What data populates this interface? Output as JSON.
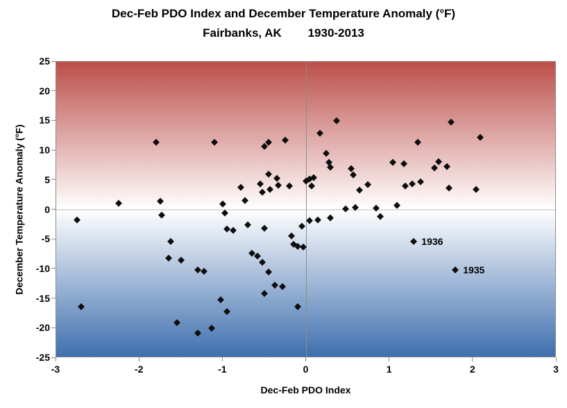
{
  "title": {
    "line1": "Dec-Feb PDO Index and December Temperature Anomaly (°F)",
    "line2": "Fairbanks, AK        1930-2013"
  },
  "axes": {
    "x": {
      "label": "Dec-Feb PDO Index",
      "min": -3,
      "max": 3,
      "ticks": [
        -3,
        -2,
        -1,
        0,
        1,
        2,
        3
      ]
    },
    "y": {
      "label": "December Temperature Anomaly (°F)",
      "min": -25,
      "max": 25,
      "ticks": [
        25,
        20,
        15,
        10,
        5,
        0,
        -5,
        -10,
        -15,
        -20,
        -25
      ]
    }
  },
  "colors": {
    "gradient_top": "#bc4f4a",
    "gradient_middle": "#ffffff",
    "gradient_bottom": "#3f6fae",
    "marker": "#0d0d0d",
    "gridline": "#8c8c8c",
    "border": "#8c8c8c"
  },
  "chart_data": {
    "type": "scatter",
    "title": "Dec-Feb PDO Index and December Temperature Anomaly (°F) — Fairbanks, AK 1930-2013",
    "xlabel": "Dec-Feb PDO Index",
    "ylabel": "December Temperature Anomaly (°F)",
    "xlim": [
      -3,
      3
    ],
    "ylim": [
      -25,
      25
    ],
    "grid": "zero-lines-only",
    "legend": "none",
    "points": [
      [
        -2.75,
        -1.8
      ],
      [
        -2.7,
        -16.5
      ],
      [
        -2.25,
        1.0
      ],
      [
        -1.8,
        11.3
      ],
      [
        -1.75,
        1.4
      ],
      [
        -1.73,
        -1.0
      ],
      [
        -1.62,
        -5.5
      ],
      [
        -1.65,
        -8.3
      ],
      [
        -1.5,
        -8.6
      ],
      [
        -1.55,
        -19.2
      ],
      [
        -1.3,
        -10.3
      ],
      [
        -1.22,
        -10.5
      ],
      [
        -1.3,
        -21.0
      ],
      [
        -1.13,
        -20.2
      ],
      [
        -1.1,
        11.3
      ],
      [
        -1.0,
        0.9
      ],
      [
        -0.97,
        -0.6
      ],
      [
        -0.95,
        -3.3
      ],
      [
        -0.87,
        -3.6
      ],
      [
        -1.02,
        -15.4
      ],
      [
        -0.95,
        -17.4
      ],
      [
        -0.78,
        3.7
      ],
      [
        -0.73,
        1.5
      ],
      [
        -0.7,
        -2.7
      ],
      [
        -0.65,
        -7.5
      ],
      [
        -0.58,
        -7.9
      ],
      [
        -0.55,
        4.3
      ],
      [
        -0.52,
        2.9
      ],
      [
        -0.5,
        10.6
      ],
      [
        -0.45,
        11.4
      ],
      [
        -0.45,
        5.9
      ],
      [
        -0.43,
        3.3
      ],
      [
        -0.5,
        -3.2
      ],
      [
        -0.52,
        -9.0
      ],
      [
        -0.45,
        -10.6
      ],
      [
        -0.5,
        -14.3
      ],
      [
        -0.35,
        5.2
      ],
      [
        -0.33,
        4.1
      ],
      [
        -0.37,
        -12.9
      ],
      [
        -0.28,
        -13.1
      ],
      [
        -0.25,
        11.7
      ],
      [
        -0.2,
        4.0
      ],
      [
        -0.17,
        -4.5
      ],
      [
        -0.15,
        -5.9
      ],
      [
        -0.1,
        -6.3
      ],
      [
        -0.03,
        -6.4
      ],
      [
        -0.1,
        -16.5
      ],
      [
        -0.05,
        -2.9
      ],
      [
        0.0,
        4.8
      ],
      [
        0.05,
        5.1
      ],
      [
        0.1,
        5.3
      ],
      [
        0.07,
        3.9
      ],
      [
        0.05,
        -1.9
      ],
      [
        0.15,
        -1.8
      ],
      [
        0.17,
        12.9
      ],
      [
        0.25,
        9.5
      ],
      [
        0.28,
        7.9
      ],
      [
        0.3,
        7.1
      ],
      [
        0.37,
        15.0
      ],
      [
        0.3,
        -1.5
      ],
      [
        0.48,
        0.1
      ],
      [
        0.55,
        6.9
      ],
      [
        0.57,
        5.8
      ],
      [
        0.6,
        0.3
      ],
      [
        0.65,
        3.2
      ],
      [
        0.75,
        4.2
      ],
      [
        0.85,
        0.2
      ],
      [
        0.9,
        -1.2
      ],
      [
        1.05,
        8.0
      ],
      [
        1.1,
        0.7
      ],
      [
        1.18,
        7.7
      ],
      [
        1.2,
        3.9
      ],
      [
        1.28,
        4.3
      ],
      [
        1.3,
        -5.5
      ],
      [
        1.35,
        11.3
      ],
      [
        1.38,
        4.6
      ],
      [
        1.55,
        7.0
      ],
      [
        1.6,
        8.1
      ],
      [
        1.7,
        7.2
      ],
      [
        1.72,
        3.6
      ],
      [
        1.75,
        14.8
      ],
      [
        1.8,
        -10.3
      ],
      [
        2.05,
        3.3
      ],
      [
        2.1,
        12.2
      ]
    ],
    "annotations": [
      {
        "text": "1936",
        "x": 1.3,
        "y": -5.5
      },
      {
        "text": "1935",
        "x": 1.8,
        "y": -10.3
      }
    ]
  }
}
